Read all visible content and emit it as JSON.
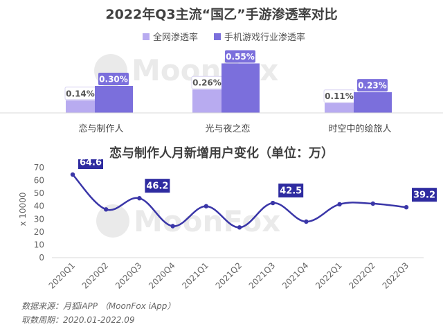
{
  "chart_data": [
    {
      "type": "bar",
      "title": "2022年Q3主流“国乙”手游渗透率对比",
      "categories": [
        "恋与制作人",
        "光与夜之恋",
        "时空中的绘旅人"
      ],
      "series": [
        {
          "name": "全网渗透率",
          "values": [
            0.14,
            0.26,
            0.11
          ],
          "labels": [
            "0.14%",
            "0.26%",
            "0.11%"
          ],
          "color": "#b8abf0"
        },
        {
          "name": "手机游戏行业渗透率",
          "values": [
            0.3,
            0.55,
            0.23
          ],
          "labels": [
            "0.30%",
            "0.55%",
            "0.23%"
          ],
          "color": "#7b6fdc"
        }
      ],
      "legend_position": "top"
    },
    {
      "type": "line",
      "title": "恋与制作人月新增用户变化（单位：万）",
      "ylabel": "x 10000",
      "x": [
        "2020Q1",
        "2020Q2",
        "2020Q3",
        "2020Q4",
        "2021Q1",
        "2021Q2",
        "2021Q3",
        "2021Q4",
        "2022Q1",
        "2022Q2",
        "2022Q3"
      ],
      "y_ticks": [
        0,
        10,
        20,
        30,
        40,
        50,
        60,
        70
      ],
      "ylim": [
        0,
        70
      ],
      "series": [
        {
          "values": [
            64.6,
            37.5,
            46.2,
            24.5,
            40,
            23.5,
            42.5,
            28,
            41.5,
            42,
            39.2
          ],
          "color": "#3a36a8"
        }
      ],
      "callouts": [
        {
          "index": 0,
          "label": "64.6"
        },
        {
          "index": 2,
          "label": "46.2"
        },
        {
          "index": 6,
          "label": "42.5"
        },
        {
          "index": 10,
          "label": "39.2"
        }
      ]
    }
  ],
  "watermark": "MoonFox",
  "footer": {
    "source": "数据来源：月狐iAPP （MoonFox iApp）",
    "period": "取数周期：2020.01-2022.09"
  }
}
